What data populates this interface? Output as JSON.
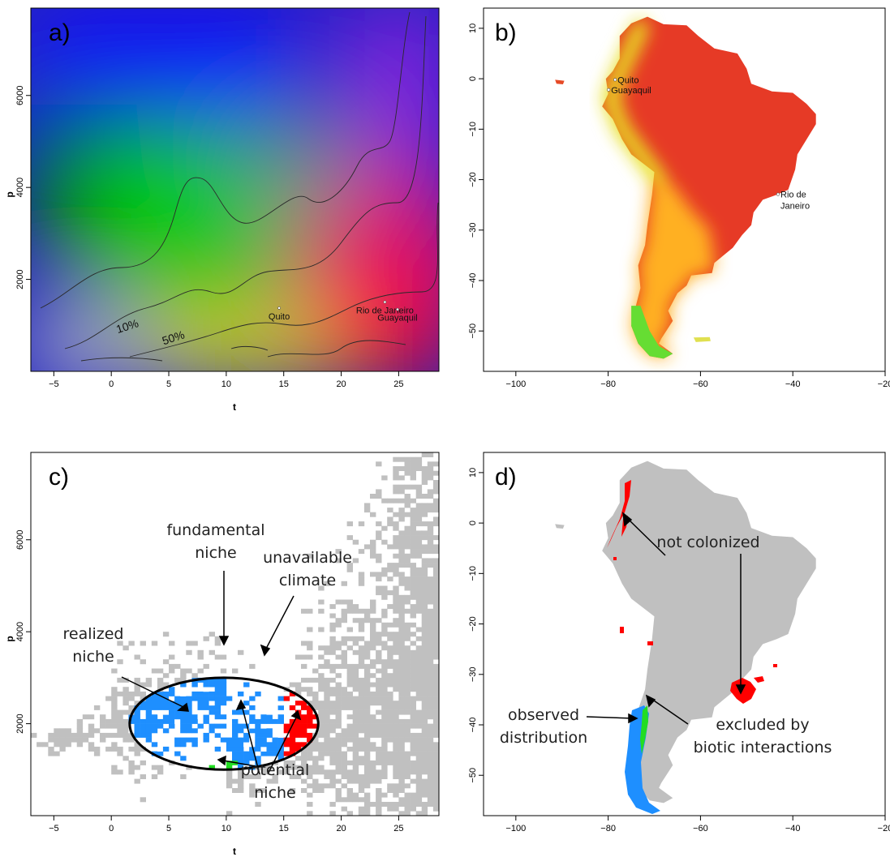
{
  "chart_data": [
    {
      "panel": "a)",
      "type": "heatmap",
      "xlabel": "t",
      "ylabel": "p",
      "xlim": [
        -7,
        28.5
      ],
      "ylim": [
        0,
        7900
      ],
      "x_ticks": [
        -5,
        0,
        5,
        10,
        15,
        20,
        25
      ],
      "y_ticks": [
        2000,
        4000,
        6000
      ],
      "color_corners": {
        "low_t_low_p": "#d0d0d0",
        "high_t_low_p": "#ff0000",
        "low_t_high_p": "#0000ff",
        "mid_t_mid_p": "#00c800",
        "high_t_high_p": "#9932cc",
        "mid_t_low_p": "#ffff00"
      },
      "contour_labels": [
        "10%",
        "50%"
      ],
      "contour_label_points": [
        {
          "x": 1.5,
          "y": 900
        },
        {
          "x": 5.5,
          "y": 650
        }
      ],
      "cities": [
        {
          "name": "Quito",
          "x": 14.6,
          "y": 1130
        },
        {
          "name": "Rio de Janeiro",
          "x": 23.8,
          "y": 1260
        },
        {
          "name": "Guayaquil",
          "x": 24.9,
          "y": 1100
        }
      ]
    },
    {
      "panel": "b)",
      "type": "map",
      "xlim": [
        -107,
        -20
      ],
      "ylim": [
        -58,
        14
      ],
      "x_ticks": [
        -100,
        -80,
        -60,
        -40,
        -20
      ],
      "y_ticks": [
        10,
        0,
        -10,
        -20,
        -30,
        -40,
        -50
      ],
      "cities": [
        {
          "name": "Quito",
          "x": -78.5,
          "y": -0.2
        },
        {
          "name": "Guayaquil",
          "x": -79.9,
          "y": -2.2
        },
        {
          "name": "Rio de\nJaneiro",
          "x": -43.2,
          "y": -22.9
        }
      ]
    },
    {
      "panel": "c)",
      "type": "heatmap",
      "xlabel": "t",
      "ylabel": "p",
      "xlim": [
        -7,
        28.5
      ],
      "ylim": [
        0,
        7900
      ],
      "x_ticks": [
        -5,
        0,
        5,
        10,
        15,
        20,
        25
      ],
      "y_ticks": [
        2000,
        4000,
        6000
      ],
      "fundamental_niche_ellipse": {
        "center_t": 9.8,
        "center_p": 2000,
        "half_width_t": 8.2,
        "half_height_p": 1000
      },
      "categories": [
        {
          "label": "available climate",
          "color": "#c0c0c0"
        },
        {
          "label": "realized niche",
          "color": "#1e8fff"
        },
        {
          "label": "potential niche",
          "color": "#ff0000"
        },
        {
          "label": "excluded by biotic interactions",
          "color": "#22dd22"
        }
      ],
      "annotations": [
        "fundamental\nniche",
        "unavailable\nclimate",
        "realized\nniche",
        "potential\nniche"
      ]
    },
    {
      "panel": "d)",
      "type": "map",
      "xlim": [
        -107,
        -20
      ],
      "ylim": [
        -58,
        14
      ],
      "x_ticks": [
        -100,
        -80,
        -60,
        -40,
        -20
      ],
      "y_ticks": [
        10,
        0,
        -10,
        -20,
        -30,
        -40,
        -50
      ],
      "categories": [
        {
          "label": "observed distribution",
          "color": "#1e8fff"
        },
        {
          "label": "excluded by biotic interactions",
          "color": "#22dd22"
        },
        {
          "label": "not colonized",
          "color": "#ff0000"
        },
        {
          "label": "continent",
          "color": "#c0c0c0"
        }
      ],
      "annotations": [
        "not colonized",
        "observed\ndistribution",
        "excluded by\nbiotic interactions"
      ]
    }
  ]
}
